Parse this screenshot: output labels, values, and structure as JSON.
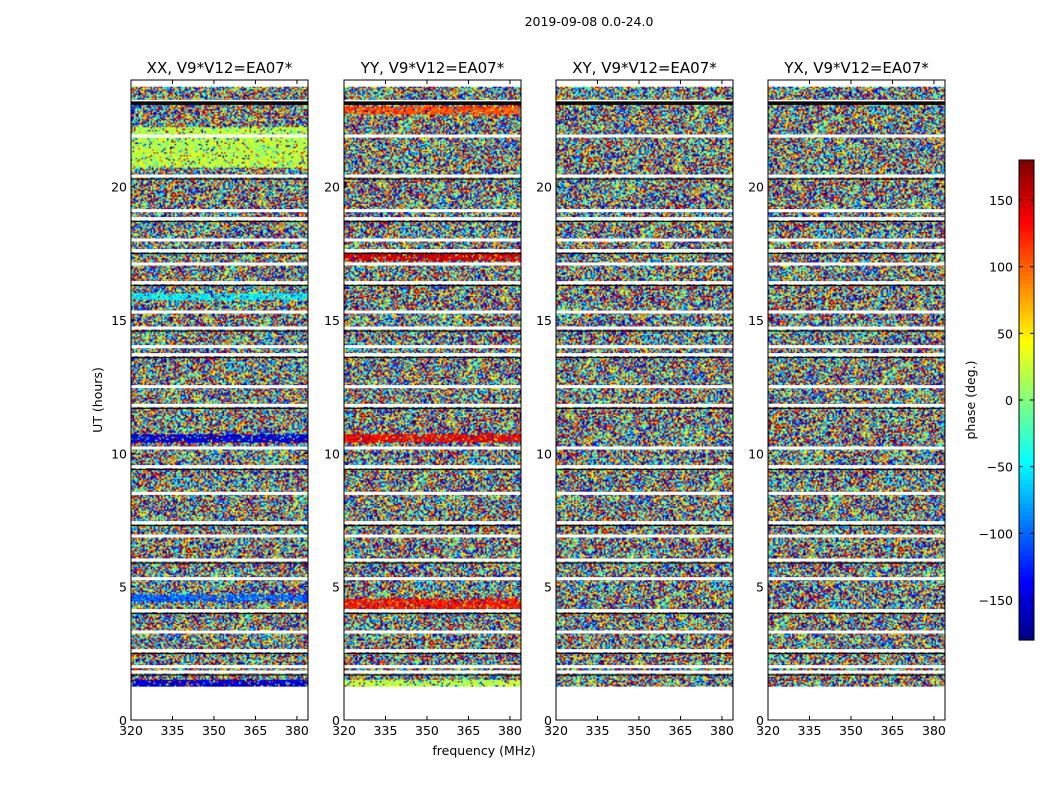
{
  "chart_data": {
    "type": "heatmap",
    "suptitle": "2019-09-08 0.0-24.0",
    "xlabel": "frequency (MHz)",
    "ylabel": "UT (hours)",
    "xlim": [
      320,
      384
    ],
    "ylim": [
      0,
      24
    ],
    "xticks": [
      "320",
      "335",
      "350",
      "365",
      "380"
    ],
    "xtick_values": [
      320,
      335,
      350,
      365,
      380
    ],
    "yticks": [
      "0",
      "5",
      "10",
      "15",
      "20"
    ],
    "ytick_values": [
      0,
      5,
      10,
      15,
      20
    ],
    "data_time_range_hours": [
      1.25,
      23.75
    ],
    "panels": [
      {
        "title": "XX, V9*V12=EA07*",
        "features": [
          {
            "t_start": 1.3,
            "t_end": 1.5,
            "phase_deg": -150,
            "desc": "dark blue/red band"
          },
          {
            "t_start": 4.5,
            "t_end": 4.7,
            "phase_deg": -100,
            "desc": "blue band"
          },
          {
            "t_start": 10.5,
            "t_end": 10.7,
            "phase_deg": -150,
            "desc": "strong blue band"
          },
          {
            "t_start": 15.8,
            "t_end": 16.0,
            "phase_deg": -50,
            "desc": "cyan/green band"
          },
          {
            "t_start": 20.8,
            "t_end": 22.2,
            "phase_deg": 20,
            "desc": "greenish patch"
          }
        ]
      },
      {
        "title": "YY, V9*V12=EA07*",
        "features": [
          {
            "t_start": 1.3,
            "t_end": 1.5,
            "phase_deg": 20,
            "desc": "green/yellow band"
          },
          {
            "t_start": 4.2,
            "t_end": 4.5,
            "phase_deg": 130,
            "desc": "red band"
          },
          {
            "t_start": 10.5,
            "t_end": 10.7,
            "phase_deg": 140,
            "desc": "strong red band"
          },
          {
            "t_start": 17.3,
            "t_end": 17.5,
            "phase_deg": 150,
            "desc": "red band"
          },
          {
            "t_start": 22.8,
            "t_end": 23.0,
            "phase_deg": 110,
            "desc": "orange band"
          }
        ]
      },
      {
        "title": "XY, V9*V12=EA07*",
        "features": []
      },
      {
        "title": "YX, V9*V12=EA07*",
        "features": []
      }
    ],
    "colorbar": {
      "label": "phase (deg.)",
      "range": [
        -180,
        180
      ],
      "ticks": [
        "150",
        "100",
        "50",
        "0",
        "−50",
        "−100",
        "−150"
      ],
      "tick_values": [
        150,
        100,
        50,
        0,
        -50,
        -100,
        -150
      ],
      "colormap": "jet"
    },
    "flagged_gaps_hours": [
      23.2,
      21.9,
      20.4,
      19.1,
      18.8,
      18.0,
      17.6,
      17.1,
      16.4,
      15.3,
      14.7,
      14.0,
      13.7,
      12.5,
      11.8,
      10.2,
      9.5,
      8.5,
      7.4,
      6.9,
      6.0,
      5.3,
      4.1,
      3.3,
      2.6,
      2.0,
      1.8
    ]
  }
}
